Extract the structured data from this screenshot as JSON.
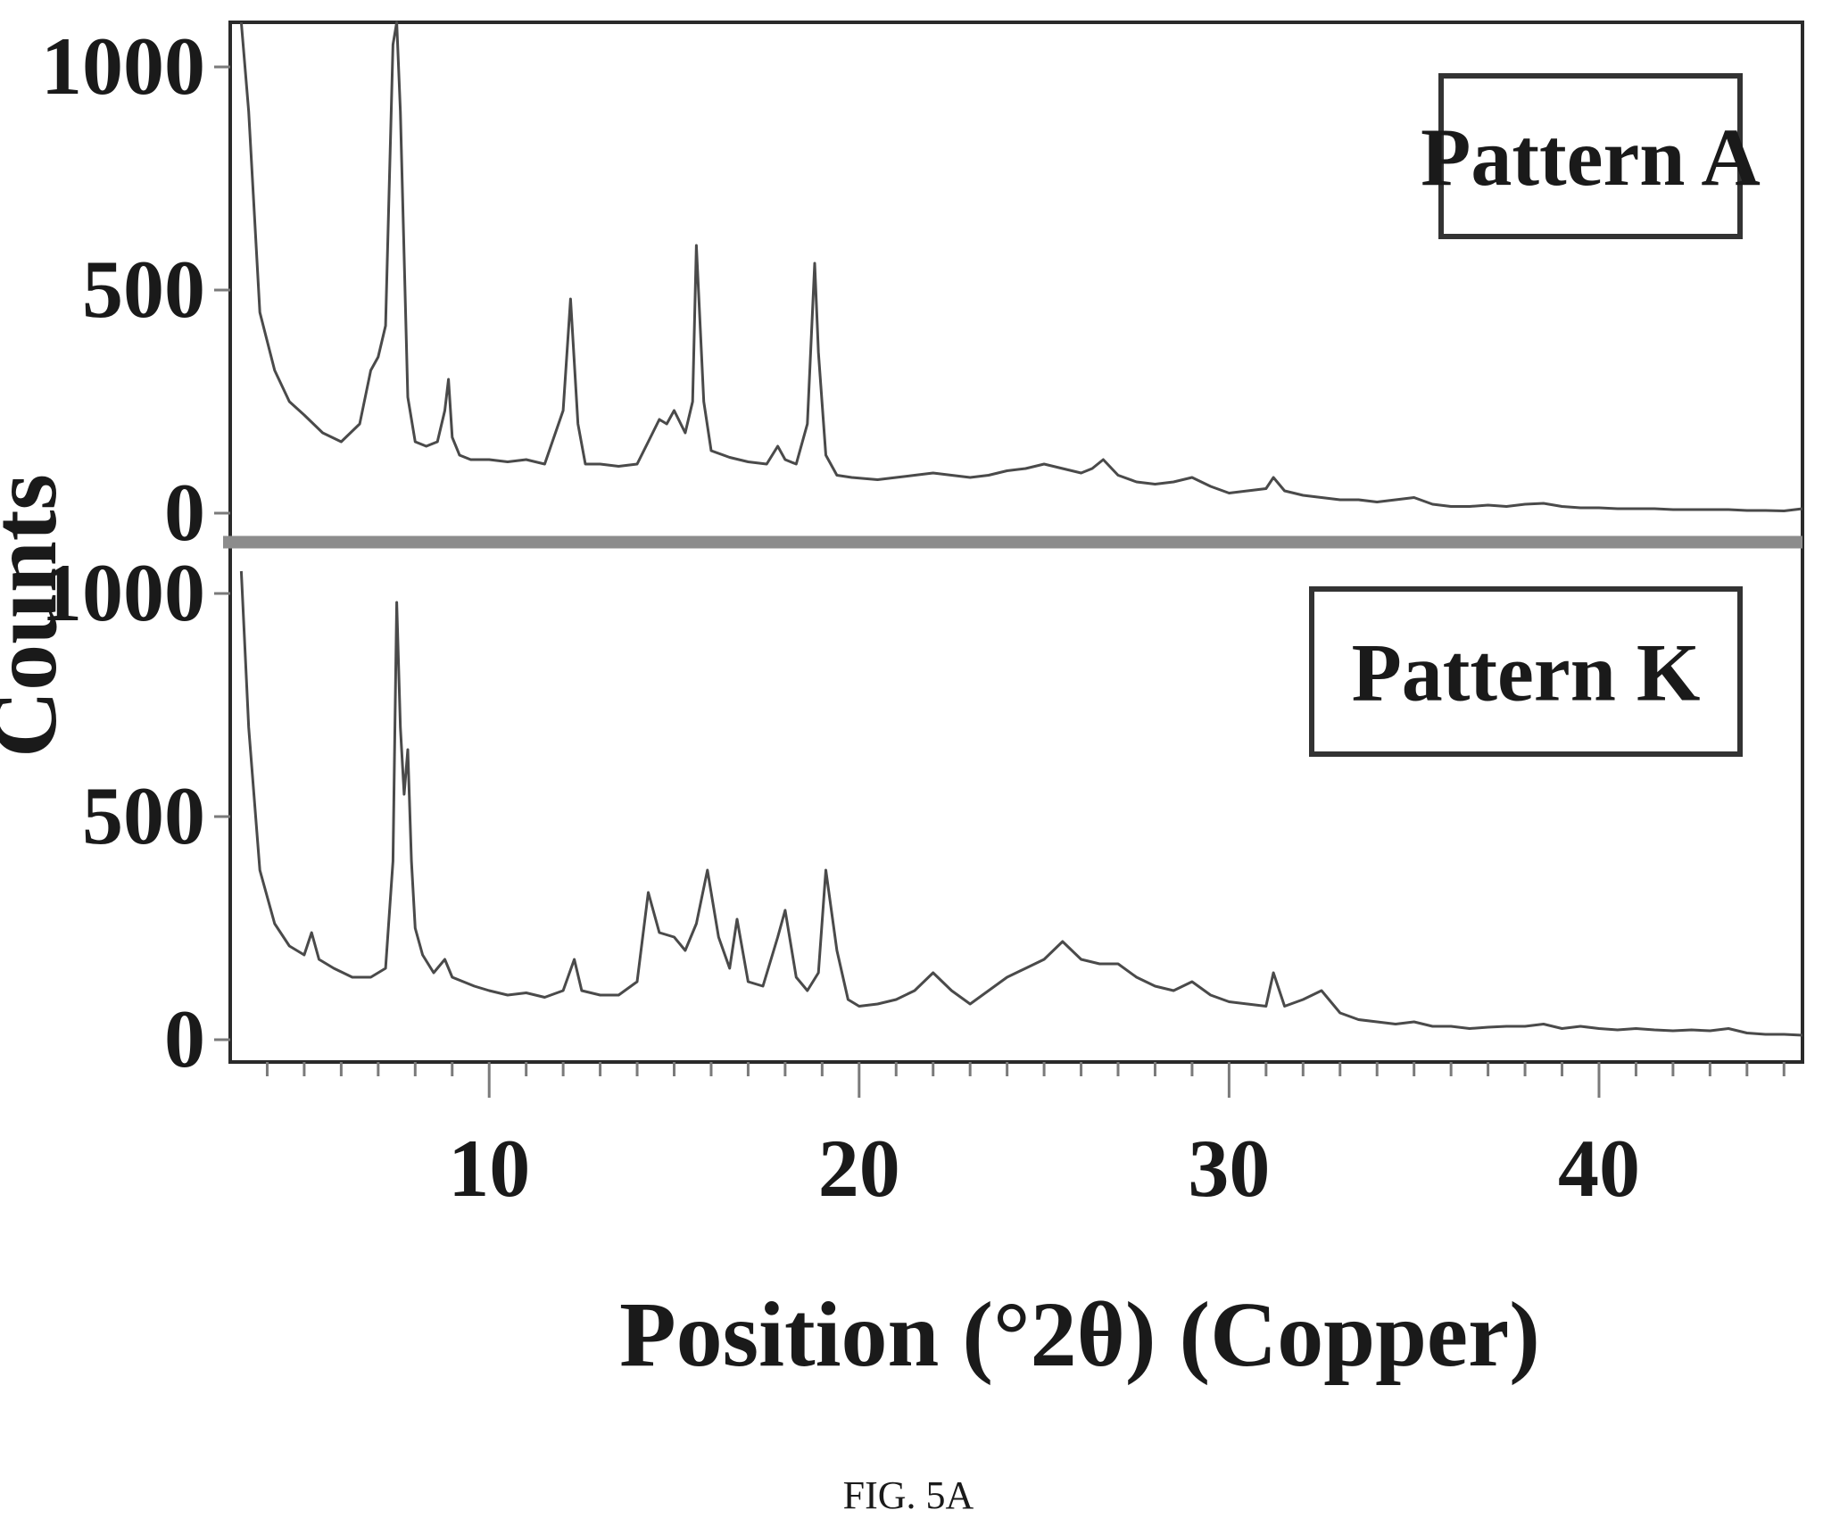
{
  "caption": "FIG. 5A",
  "colors": {
    "frame": "#2a2a2a",
    "separator": "#8c8c8c",
    "trace": "#4a4a4a"
  },
  "chart_data": {
    "type": "line",
    "title": "",
    "xlabel": "Position (°2θ) (Copper)",
    "ylabel": "Counts",
    "xlim": [
      3,
      45.5
    ],
    "x_ticks": [
      10,
      20,
      30,
      40
    ],
    "x_tick_labels": [
      "10",
      "20",
      "30",
      "40"
    ],
    "grid": false,
    "layout": "two vertically stacked panels sharing the x axis",
    "panels": [
      {
        "legend": "Pattern A",
        "legend_placement": "top-right",
        "ylim": [
          -50,
          1100
        ],
        "y_ticks": [
          0,
          500,
          1000
        ],
        "y_tick_labels": [
          "0",
          "500",
          "1000"
        ],
        "series": [
          {
            "name": "Pattern A",
            "x": [
              3.3,
              3.5,
              3.8,
              4.2,
              4.6,
              5.0,
              5.5,
              6.0,
              6.5,
              6.8,
              7.0,
              7.2,
              7.4,
              7.5,
              7.6,
              7.8,
              8.0,
              8.3,
              8.6,
              8.8,
              8.9,
              9.0,
              9.2,
              9.5,
              10.0,
              10.5,
              11.0,
              11.5,
              12.0,
              12.2,
              12.4,
              12.6,
              13.0,
              13.5,
              14.0,
              14.3,
              14.6,
              14.8,
              15.0,
              15.3,
              15.5,
              15.6,
              15.8,
              16.0,
              16.5,
              17.0,
              17.5,
              17.8,
              18.0,
              18.3,
              18.6,
              18.8,
              18.9,
              19.1,
              19.4,
              19.8,
              20.5,
              21.0,
              21.5,
              22.0,
              22.5,
              23.0,
              23.5,
              24.0,
              24.5,
              25.0,
              25.5,
              26.0,
              26.3,
              26.6,
              27.0,
              27.5,
              28.0,
              28.5,
              29.0,
              29.5,
              30.0,
              30.5,
              31.0,
              31.2,
              31.5,
              32.0,
              32.5,
              33.0,
              33.5,
              34.0,
              34.5,
              35.0,
              35.5,
              36.0,
              36.5,
              37.0,
              37.5,
              38.0,
              38.5,
              39.0,
              39.5,
              40.0,
              40.5,
              41.0,
              41.5,
              42.0,
              42.5,
              43.0,
              43.5,
              44.0,
              44.5,
              45.0,
              45.5
            ],
            "y": [
              1100,
              900,
              450,
              320,
              250,
              220,
              180,
              160,
              200,
              320,
              350,
              420,
              1050,
              1100,
              900,
              260,
              160,
              150,
              160,
              230,
              300,
              170,
              130,
              120,
              120,
              115,
              120,
              110,
              230,
              480,
              200,
              110,
              110,
              105,
              110,
              160,
              210,
              200,
              230,
              180,
              250,
              600,
              250,
              140,
              125,
              115,
              110,
              150,
              120,
              110,
              200,
              560,
              360,
              130,
              85,
              80,
              75,
              80,
              85,
              90,
              85,
              80,
              85,
              95,
              100,
              110,
              100,
              90,
              100,
              120,
              85,
              70,
              65,
              70,
              80,
              60,
              45,
              50,
              55,
              80,
              50,
              40,
              35,
              30,
              30,
              25,
              30,
              35,
              20,
              15,
              15,
              18,
              15,
              20,
              22,
              15,
              12,
              12,
              10,
              10,
              10,
              8,
              8,
              8,
              8,
              6,
              6,
              5,
              10
            ]
          }
        ]
      },
      {
        "legend": "Pattern K",
        "legend_placement": "top-right",
        "ylim": [
          -50,
          1100
        ],
        "y_ticks": [
          0,
          500,
          1000
        ],
        "y_tick_labels": [
          "0",
          "500",
          "1000"
        ],
        "series": [
          {
            "name": "Pattern K",
            "x": [
              3.3,
              3.5,
              3.8,
              4.2,
              4.6,
              5.0,
              5.2,
              5.4,
              5.8,
              6.3,
              6.8,
              7.2,
              7.4,
              7.5,
              7.6,
              7.7,
              7.8,
              7.9,
              8.0,
              8.2,
              8.5,
              8.8,
              9.0,
              9.3,
              9.6,
              10.0,
              10.5,
              11.0,
              11.5,
              12.0,
              12.3,
              12.5,
              13.0,
              13.5,
              14.0,
              14.3,
              14.6,
              15.0,
              15.3,
              15.6,
              15.9,
              16.2,
              16.5,
              16.7,
              17.0,
              17.4,
              17.8,
              18.0,
              18.3,
              18.6,
              18.9,
              19.1,
              19.4,
              19.7,
              20.0,
              20.5,
              21.0,
              21.5,
              22.0,
              22.5,
              23.0,
              23.5,
              24.0,
              24.5,
              25.0,
              25.5,
              26.0,
              26.5,
              27.0,
              27.5,
              28.0,
              28.5,
              29.0,
              29.5,
              30.0,
              30.5,
              31.0,
              31.2,
              31.5,
              32.0,
              32.5,
              33.0,
              33.5,
              34.0,
              34.5,
              35.0,
              35.5,
              36.0,
              36.5,
              37.0,
              37.5,
              38.0,
              38.5,
              39.0,
              39.5,
              40.0,
              40.5,
              41.0,
              41.5,
              42.0,
              42.5,
              43.0,
              43.5,
              44.0,
              44.5,
              45.0,
              45.5
            ],
            "y": [
              1050,
              700,
              380,
              260,
              210,
              190,
              240,
              180,
              160,
              140,
              140,
              160,
              400,
              980,
              700,
              550,
              650,
              400,
              250,
              190,
              150,
              180,
              140,
              130,
              120,
              110,
              100,
              105,
              95,
              110,
              180,
              110,
              100,
              100,
              130,
              330,
              240,
              230,
              200,
              260,
              380,
              230,
              160,
              270,
              130,
              120,
              230,
              290,
              140,
              110,
              150,
              380,
              200,
              90,
              75,
              80,
              90,
              110,
              150,
              110,
              80,
              110,
              140,
              160,
              180,
              220,
              180,
              170,
              170,
              140,
              120,
              110,
              130,
              100,
              85,
              80,
              75,
              150,
              75,
              90,
              110,
              60,
              45,
              40,
              35,
              40,
              30,
              30,
              25,
              28,
              30,
              30,
              35,
              25,
              30,
              25,
              22,
              25,
              22,
              20,
              22,
              20,
              25,
              15,
              12,
              12,
              10
            ]
          }
        ]
      }
    ]
  }
}
